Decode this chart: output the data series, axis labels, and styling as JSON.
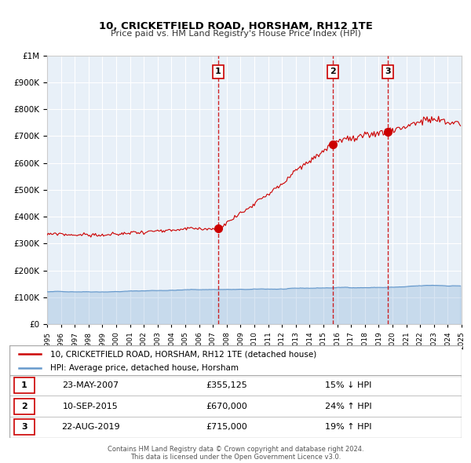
{
  "title": "10, CRICKETFIELD ROAD, HORSHAM, RH12 1TE",
  "subtitle": "Price paid vs. HM Land Registry's House Price Index (HPI)",
  "legend_line1": "10, CRICKETFIELD ROAD, HORSHAM, RH12 1TE (detached house)",
  "legend_line2": "HPI: Average price, detached house, Horsham",
  "footer1": "Contains HM Land Registry data © Crown copyright and database right 2024.",
  "footer2": "This data is licensed under the Open Government Licence v3.0.",
  "sale_dates": [
    "23-MAY-2007",
    "10-SEP-2015",
    "22-AUG-2019"
  ],
  "sale_prices": [
    355125,
    670000,
    715000
  ],
  "sale_labels": [
    "1",
    "2",
    "3"
  ],
  "sale_hpi_notes": [
    "15% ↓ HPI",
    "24% ↑ HPI",
    "19% ↑ HPI"
  ],
  "hpi_sale_years": [
    2007.38,
    2015.69,
    2019.64
  ],
  "vline_color": "#cc0000",
  "dot_color": "#cc0000",
  "red_line_color": "#cc0000",
  "blue_line_color": "#6699cc",
  "plot_bg": "#e8f0f8",
  "grid_color": "#ffffff",
  "ymax": 1000000,
  "ymin": 0,
  "xmin": 1995,
  "xmax": 2025
}
